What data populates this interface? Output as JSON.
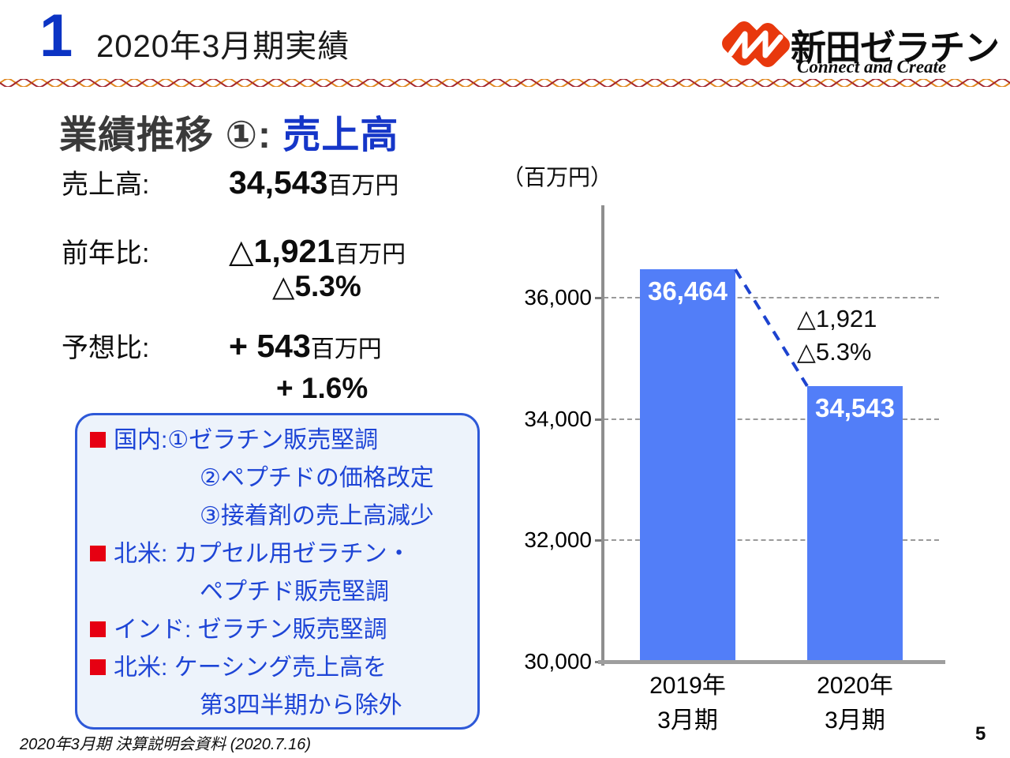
{
  "header": {
    "section_number": "1",
    "title": "2020年3月期実績",
    "logo": {
      "company": "新田ゼラチン",
      "tagline": "Connect and Create",
      "mark_color": "#e8380d"
    }
  },
  "heading": {
    "prefix": "業績推移 ①:",
    "highlight": "売上高",
    "highlight_color": "#1536c8"
  },
  "stats": {
    "rows": [
      {
        "label": "売上高:",
        "value": "34,543",
        "unit": "百万円",
        "sub": ""
      },
      {
        "label": "前年比:",
        "value": "△1,921",
        "unit": "百万円",
        "sub": "△5.3%"
      },
      {
        "label": "予想比:",
        "value": "+ 543",
        "unit": "百万円",
        "sub": "+ 1.6%"
      }
    ]
  },
  "notes": {
    "text_color": "#1e45d6",
    "bullet_color": "#e60012",
    "lines": [
      {
        "bullet": true,
        "text": "国内:①ゼラチン販売堅調"
      },
      {
        "bullet": false,
        "text": "②ペプチドの価格改定"
      },
      {
        "bullet": false,
        "text": "③接着剤の売上高減少"
      },
      {
        "bullet": true,
        "text": "北米: カプセル用ゼラチン・"
      },
      {
        "bullet": false,
        "text": "ペプチド販売堅調"
      },
      {
        "bullet": true,
        "text": "インド: ゼラチン販売堅調"
      },
      {
        "bullet": true,
        "text": "北米: ケーシング売上高を"
      },
      {
        "bullet": false,
        "text": "第3四半期から除外"
      }
    ]
  },
  "chart_data": {
    "type": "bar",
    "title": "",
    "unit_label": "（百万円）",
    "categories": [
      {
        "line1": "2019年",
        "line2": "3月期"
      },
      {
        "line1": "2020年",
        "line2": "3月期"
      }
    ],
    "values": [
      36464,
      34543
    ],
    "value_labels": [
      "36,464",
      "34,543"
    ],
    "y_ticks": [
      36000,
      34000,
      32000,
      30000
    ],
    "y_tick_labels": [
      "36,000",
      "34,000",
      "32,000",
      "30,000"
    ],
    "ylim": [
      30000,
      37500
    ],
    "grid": "dashed horizontal",
    "legend": "none",
    "bar_color": "#527ef8",
    "connector_color": "#1d43cf",
    "annotation": {
      "line1": "△1,921",
      "line2": "△5.3%"
    }
  },
  "footer": {
    "source": "2020年3月期 決算説明会資料 (2020.7.16)",
    "page": "5"
  }
}
